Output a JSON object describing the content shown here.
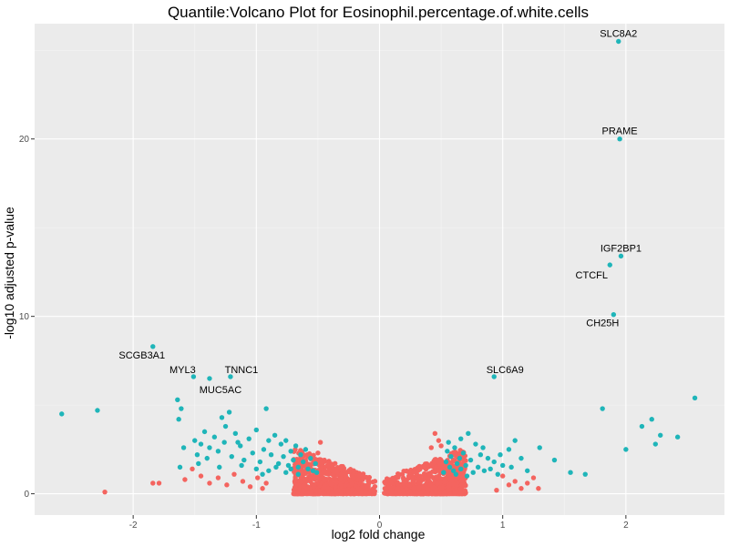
{
  "chart_data": {
    "type": "scatter",
    "title": "Quantile:Volcano Plot for Eosinophil.percentage.of.white.cells",
    "xlabel": "log2 fold change",
    "ylabel": "-log10 adjusted p-value",
    "xlim": [
      -2.8,
      2.8
    ],
    "ylim": [
      -1.2,
      26.5
    ],
    "x_ticks": [
      -2,
      -1,
      0,
      1,
      2
    ],
    "y_ticks": [
      0,
      10,
      20
    ],
    "grid": true,
    "legend": "none",
    "colors": {
      "panel": "#ebebeb",
      "grid": "#ffffff",
      "significant": "#1fb5b9",
      "not_significant": "#f4645f"
    },
    "labeled_points": [
      {
        "gene": "SLC8A2",
        "x": 1.94,
        "y": 25.5
      },
      {
        "gene": "PRAME",
        "x": 1.95,
        "y": 20.0
      },
      {
        "gene": "IGF2BP1",
        "x": 1.96,
        "y": 13.4
      },
      {
        "gene": "CTCFL",
        "x": 1.87,
        "y": 12.9
      },
      {
        "gene": "CH25H",
        "x": 1.9,
        "y": 10.1
      },
      {
        "gene": "SCGB3A1",
        "x": -1.84,
        "y": 8.3
      },
      {
        "gene": "MYL3",
        "x": -1.51,
        "y": 6.6
      },
      {
        "gene": "MUC5AC",
        "x": -1.38,
        "y": 6.5
      },
      {
        "gene": "TNNC1",
        "x": -1.21,
        "y": 6.6
      },
      {
        "gene": "SLC6A9",
        "x": 0.93,
        "y": 6.6
      }
    ],
    "series": [
      {
        "status": "significant",
        "points": [
          [
            -2.58,
            4.5
          ],
          [
            -2.29,
            4.7
          ],
          [
            -1.64,
            5.3
          ],
          [
            -1.61,
            4.8
          ],
          [
            -1.63,
            4.2
          ],
          [
            -1.62,
            1.5
          ],
          [
            -1.5,
            3.0
          ],
          [
            -1.48,
            2.2
          ],
          [
            -1.45,
            2.8
          ],
          [
            -1.42,
            3.5
          ],
          [
            -1.4,
            2.0
          ],
          [
            -1.38,
            2.6
          ],
          [
            -1.34,
            3.2
          ],
          [
            -1.31,
            2.4
          ],
          [
            -1.28,
            4.3
          ],
          [
            -1.25,
            3.8
          ],
          [
            -1.22,
            4.6
          ],
          [
            -1.2,
            2.1
          ],
          [
            -1.17,
            3.4
          ],
          [
            -1.13,
            2.7
          ],
          [
            -1.1,
            1.9
          ],
          [
            -1.06,
            3.1
          ],
          [
            -1.03,
            2.3
          ],
          [
            -1.0,
            3.6
          ],
          [
            -0.97,
            1.8
          ],
          [
            -0.94,
            2.5
          ],
          [
            -0.92,
            4.8
          ],
          [
            -0.9,
            3.0
          ],
          [
            -0.88,
            2.2
          ],
          [
            -0.85,
            3.3
          ],
          [
            -0.82,
            1.7
          ],
          [
            -0.8,
            2.8
          ],
          [
            -0.78,
            2.1
          ],
          [
            -0.76,
            3.0
          ],
          [
            -0.74,
            1.6
          ],
          [
            -0.72,
            2.4
          ],
          [
            -0.7,
            1.9
          ],
          [
            -0.68,
            2.7
          ],
          [
            -0.66,
            1.5
          ],
          [
            -0.64,
            2.2
          ],
          [
            -0.62,
            1.8
          ],
          [
            -0.6,
            2.5
          ],
          [
            -0.58,
            1.4
          ],
          [
            -0.56,
            2.0
          ],
          [
            -0.54,
            1.3
          ],
          [
            -0.52,
            1.7
          ],
          [
            -0.51,
            1.2
          ],
          [
            -0.9,
            1.3
          ],
          [
            -0.84,
            1.5
          ],
          [
            -0.76,
            1.2
          ],
          [
            -0.72,
            1.4
          ],
          [
            -0.66,
            1.1
          ],
          [
            -1.12,
            1.6
          ],
          [
            -1.26,
            2.9
          ],
          [
            -1.47,
            1.7
          ],
          [
            -1.59,
            2.6
          ],
          [
            -1.3,
            1.5
          ],
          [
            -1.0,
            1.4
          ],
          [
            -1.15,
            2.9
          ],
          [
            -0.95,
            1.1
          ],
          [
            0.52,
            1.2
          ],
          [
            0.54,
            1.8
          ],
          [
            0.55,
            2.4
          ],
          [
            0.57,
            1.5
          ],
          [
            0.58,
            2.1
          ],
          [
            0.6,
            1.3
          ],
          [
            0.61,
            2.6
          ],
          [
            0.63,
            1.7
          ],
          [
            0.65,
            2.0
          ],
          [
            0.66,
            1.4
          ],
          [
            0.68,
            2.3
          ],
          [
            0.7,
            1.6
          ],
          [
            0.72,
            3.4
          ],
          [
            0.74,
            1.9
          ],
          [
            0.76,
            1.2
          ],
          [
            0.78,
            2.8
          ],
          [
            0.8,
            1.5
          ],
          [
            0.82,
            2.2
          ],
          [
            0.85,
            1.3
          ],
          [
            0.88,
            2.0
          ],
          [
            0.9,
            1.4
          ],
          [
            0.93,
            1.8
          ],
          [
            0.96,
            1.1
          ],
          [
            1.0,
            1.6
          ],
          [
            1.05,
            2.5
          ],
          [
            1.1,
            3.0
          ],
          [
            1.15,
            2.0
          ],
          [
            1.2,
            1.3
          ],
          [
            1.3,
            2.6
          ],
          [
            1.42,
            1.9
          ],
          [
            1.55,
            1.2
          ],
          [
            1.67,
            1.1
          ],
          [
            1.81,
            4.8
          ],
          [
            2.0,
            2.5
          ],
          [
            2.13,
            3.8
          ],
          [
            2.21,
            4.2
          ],
          [
            2.24,
            2.8
          ],
          [
            2.28,
            3.3
          ],
          [
            2.42,
            3.2
          ],
          [
            2.56,
            5.4
          ],
          [
            0.56,
            2.9
          ],
          [
            0.62,
            1.1
          ],
          [
            0.71,
            1.0
          ],
          [
            0.84,
            2.6
          ],
          [
            0.98,
            2.2
          ],
          [
            1.07,
            1.5
          ],
          [
            0.66,
            3.1
          ]
        ]
      },
      {
        "status": "not_significant",
        "points": [
          [
            -2.23,
            0.1
          ],
          [
            -1.84,
            0.6
          ],
          [
            -1.79,
            0.6
          ],
          [
            -1.58,
            0.8
          ],
          [
            -1.52,
            1.4
          ],
          [
            -1.45,
            1.0
          ],
          [
            -1.38,
            0.6
          ],
          [
            -1.31,
            0.9
          ],
          [
            -1.24,
            0.5
          ],
          [
            -1.18,
            1.1
          ],
          [
            -1.11,
            0.7
          ],
          [
            -1.05,
            0.4
          ],
          [
            -0.99,
            0.9
          ],
          [
            -0.95,
            0.3
          ],
          [
            -0.92,
            0.6
          ],
          [
            1.0,
            1.0
          ],
          [
            1.05,
            0.5
          ],
          [
            1.1,
            0.7
          ],
          [
            1.15,
            0.3
          ],
          [
            1.2,
            0.6
          ],
          [
            1.25,
            0.9
          ],
          [
            1.29,
            0.3
          ],
          [
            0.95,
            0.2
          ],
          [
            0.45,
            3.4
          ],
          [
            -0.48,
            2.9
          ],
          [
            0.5,
            2.7
          ],
          [
            -0.5,
            2.3
          ],
          [
            0.42,
            2.6
          ],
          [
            0.48,
            3.0
          ]
        ]
      }
    ]
  }
}
